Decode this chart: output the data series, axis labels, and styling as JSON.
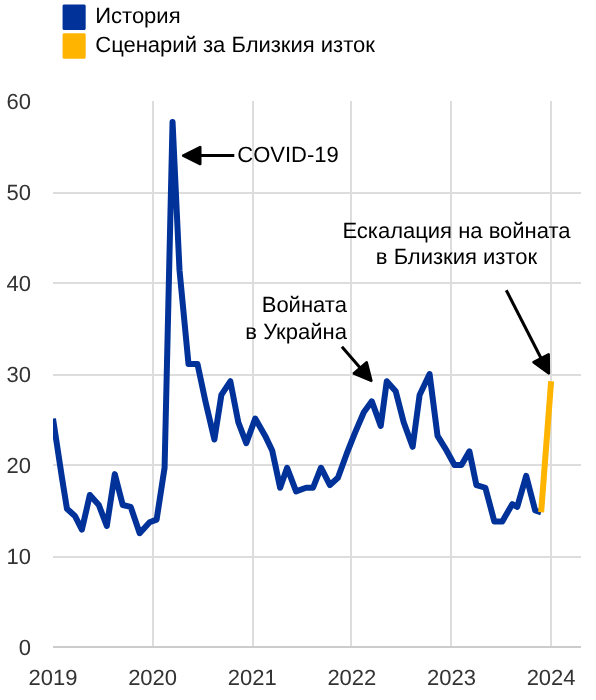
{
  "chart_data": {
    "type": "line",
    "x": [
      2019.0,
      2019.09,
      2019.14,
      2019.22,
      2019.29,
      2019.37,
      2019.46,
      2019.54,
      2019.62,
      2019.7,
      2019.78,
      2019.87,
      2019.97,
      2020.04,
      2020.12,
      2020.2,
      2020.27,
      2020.36,
      2020.45,
      2020.53,
      2020.62,
      2020.69,
      2020.78,
      2020.86,
      2020.94,
      2021.03,
      2021.13,
      2021.2,
      2021.28,
      2021.35,
      2021.44,
      2021.54,
      2021.61,
      2021.69,
      2021.78,
      2021.86,
      2021.95,
      2022.03,
      2022.12,
      2022.2,
      2022.29,
      2022.35,
      2022.44,
      2022.52,
      2022.61,
      2022.68,
      2022.78,
      2022.86,
      2022.95,
      2023.03,
      2023.1,
      2023.18,
      2023.25,
      2023.34,
      2023.43,
      2023.51,
      2023.61,
      2023.66,
      2023.75,
      2023.84,
      2023.9
    ],
    "series": [
      {
        "name": "История",
        "color": "#003299",
        "values": [
          25.1,
          18.6,
          15.2,
          14.4,
          12.9,
          16.7,
          15.6,
          13.3,
          19.0,
          15.6,
          15.4,
          12.5,
          13.7,
          14.0,
          19.7,
          57.7,
          41.4,
          31.1,
          31.1,
          27.0,
          22.8,
          27.7,
          29.2,
          24.7,
          22.4,
          25.1,
          23.2,
          21.6,
          17.5,
          19.7,
          17.1,
          17.5,
          17.5,
          19.7,
          17.8,
          18.6,
          21.3,
          23.5,
          25.8,
          27.0,
          24.3,
          29.2,
          28.1,
          24.7,
          22.0,
          27.7,
          30.0,
          23.2,
          21.6,
          20.0,
          20.0,
          21.5,
          17.8,
          17.5,
          13.8,
          13.8,
          15.7,
          15.4,
          18.8,
          15.0,
          14.8
        ]
      },
      {
        "name": "Сценарий за Близкия изток",
        "color": "#ffb400",
        "x": [
          2023.9,
          2024.0
        ],
        "values": [
          14.8,
          29.2
        ]
      }
    ],
    "xlim": [
      2019,
      2024.3
    ],
    "xticks": [
      2019,
      2020,
      2021,
      2022,
      2023,
      2024
    ],
    "ylim": [
      0,
      60
    ],
    "yticks": [
      0,
      10,
      20,
      30,
      40,
      50,
      60
    ],
    "grid": true,
    "legend": "top left",
    "annotations": [
      {
        "text": "COVID-19",
        "x": 2020.3,
        "y": 54
      },
      {
        "text": "Войната\nв Украйна",
        "x": 2022.2,
        "y": 27.0
      },
      {
        "text": "Ескалация на войната\nв Близкия изток",
        "x": 2024.0,
        "y": 29.2
      }
    ]
  }
}
